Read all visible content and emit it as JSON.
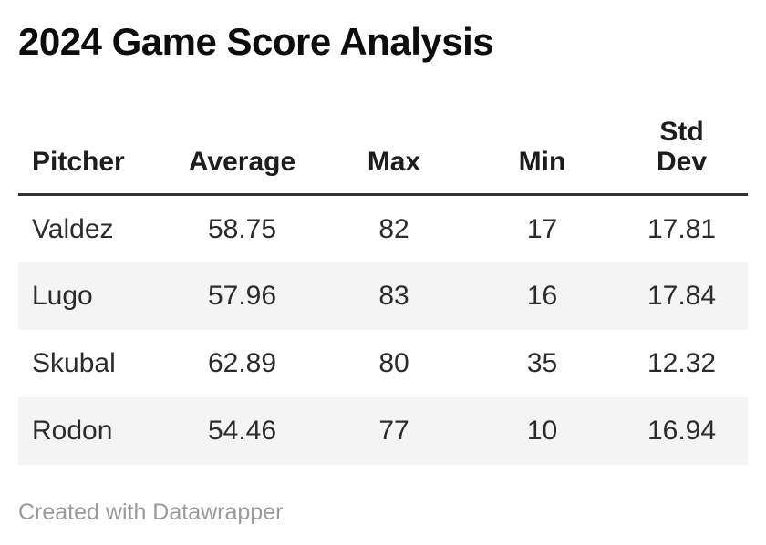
{
  "page": {
    "title": "2024 Game Score Analysis",
    "footer_credit": "Created with Datawrapper"
  },
  "colors": {
    "title_text": "#0d0d0d",
    "header_text": "#1d1d1d",
    "body_text": "#2b2b2b",
    "header_rule": "#333333",
    "row_stripe": "#f4f4f4",
    "footer_text": "#9a9a9a",
    "background": "#ffffff"
  },
  "chart_data": {
    "type": "table",
    "title": "2024 Game Score Analysis",
    "columns": [
      "Pitcher",
      "Average",
      "Max",
      "Min",
      "Std Dev"
    ],
    "rows": [
      [
        "Valdez",
        "58.75",
        "82",
        "17",
        "17.81"
      ],
      [
        "Lugo",
        "57.96",
        "83",
        "16",
        "17.84"
      ],
      [
        "Skubal",
        "62.89",
        "80",
        "35",
        "12.32"
      ],
      [
        "Rodon",
        "54.46",
        "77",
        "10",
        "16.94"
      ]
    ],
    "layout_hints": {
      "first_column_align": "left",
      "numeric_columns_align": "center",
      "zebra_striping": "even rows shaded",
      "header_rule": "3px solid dark under header",
      "std_dev_header_wraps_two_lines": true
    }
  }
}
